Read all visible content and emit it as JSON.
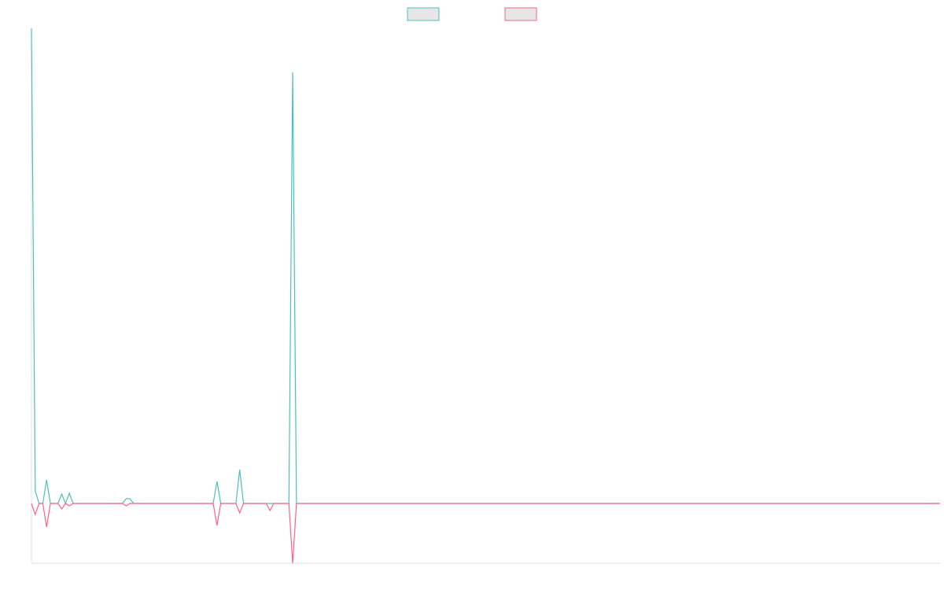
{
  "chart_data": {
    "type": "line",
    "x": [
      0,
      1,
      2,
      3,
      4,
      5,
      7,
      8,
      9,
      10,
      11,
      24,
      25,
      26,
      27,
      48,
      49,
      50,
      54,
      55,
      56,
      62,
      63,
      64,
      68,
      69,
      70,
      240
    ],
    "xlim": [
      0,
      240
    ],
    "ylim": [
      -76,
      604
    ],
    "series": [
      {
        "color": "#4bc0c0",
        "values": [
          604,
          16,
          0,
          0,
          30,
          0,
          0,
          12,
          0,
          13,
          0,
          0,
          6,
          6,
          0,
          0,
          28,
          0,
          0,
          43,
          0,
          0,
          0,
          0,
          0,
          548,
          0,
          0
        ]
      },
      {
        "color": "#ff6384",
        "values": [
          0,
          -14,
          0,
          0,
          -30,
          0,
          0,
          -7,
          0,
          -3,
          0,
          0,
          -3,
          0,
          0,
          0,
          -28,
          0,
          0,
          -12,
          0,
          0,
          -9,
          0,
          0,
          -76,
          0,
          0
        ]
      }
    ]
  }
}
